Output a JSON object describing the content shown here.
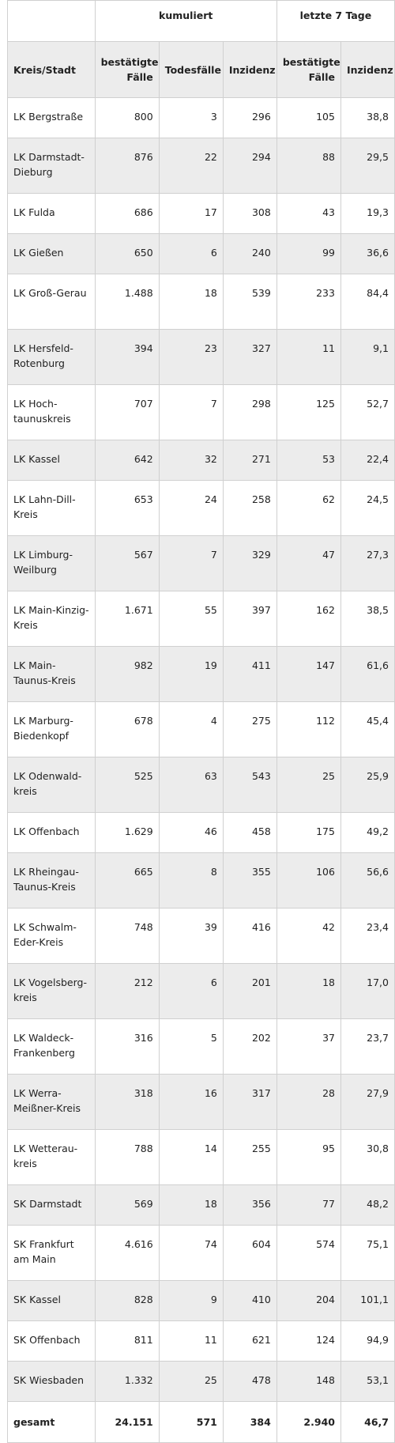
{
  "header": {
    "group_cumulative": "kumuliert",
    "group_7days": "letzte 7 Tage",
    "col_name": "Kreis/Stadt",
    "col_cases": "bestätigte Fälle",
    "col_deaths": "Todesfälle",
    "col_incidence": "Inzidenz",
    "col_cases7": "bestätigte Fälle",
    "col_incidence7": "Inzidenz"
  },
  "rows": [
    {
      "name": "LK Bergstraße",
      "cases": "800",
      "deaths": "3",
      "incidence": "296",
      "cases7": "105",
      "incidence7": "38,8"
    },
    {
      "name": "LK Darmstadt-Dieburg",
      "cases": "876",
      "deaths": "22",
      "incidence": "294",
      "cases7": "88",
      "incidence7": "29,5"
    },
    {
      "name": "LK Fulda",
      "cases": "686",
      "deaths": "17",
      "incidence": "308",
      "cases7": "43",
      "incidence7": "19,3"
    },
    {
      "name": "LK Gießen",
      "cases": "650",
      "deaths": "6",
      "incidence": "240",
      "cases7": "99",
      "incidence7": "36,6"
    },
    {
      "name": "LK Groß-Gerau",
      "cases": "1.488",
      "deaths": "18",
      "incidence": "539",
      "cases7": "233",
      "incidence7": "84,4"
    },
    {
      "name": "LK Hersfeld-Rotenburg",
      "cases": "394",
      "deaths": "23",
      "incidence": "327",
      "cases7": "11",
      "incidence7": "9,1"
    },
    {
      "name": "LK Hoch-taunuskreis",
      "cases": "707",
      "deaths": "7",
      "incidence": "298",
      "cases7": "125",
      "incidence7": "52,7"
    },
    {
      "name": "LK Kassel",
      "cases": "642",
      "deaths": "32",
      "incidence": "271",
      "cases7": "53",
      "incidence7": "22,4"
    },
    {
      "name": "LK Lahn-Dill-Kreis",
      "cases": "653",
      "deaths": "24",
      "incidence": "258",
      "cases7": "62",
      "incidence7": "24,5"
    },
    {
      "name": "LK Limburg-Weilburg",
      "cases": "567",
      "deaths": "7",
      "incidence": "329",
      "cases7": "47",
      "incidence7": "27,3"
    },
    {
      "name": "LK Main-Kinzig-Kreis",
      "cases": "1.671",
      "deaths": "55",
      "incidence": "397",
      "cases7": "162",
      "incidence7": "38,5"
    },
    {
      "name": "LK Main-Taunus-Kreis",
      "cases": "982",
      "deaths": "19",
      "incidence": "411",
      "cases7": "147",
      "incidence7": "61,6"
    },
    {
      "name": "LK Marburg-Biedenkopf",
      "cases": "678",
      "deaths": "4",
      "incidence": "275",
      "cases7": "112",
      "incidence7": "45,4"
    },
    {
      "name": "LK Odenwald-kreis",
      "cases": "525",
      "deaths": "63",
      "incidence": "543",
      "cases7": "25",
      "incidence7": "25,9"
    },
    {
      "name": "LK Offenbach",
      "cases": "1.629",
      "deaths": "46",
      "incidence": "458",
      "cases7": "175",
      "incidence7": "49,2"
    },
    {
      "name": "LK Rheingau-Taunus-Kreis",
      "cases": "665",
      "deaths": "8",
      "incidence": "355",
      "cases7": "106",
      "incidence7": "56,6"
    },
    {
      "name": "LK Schwalm-Eder-Kreis",
      "cases": "748",
      "deaths": "39",
      "incidence": "416",
      "cases7": "42",
      "incidence7": "23,4"
    },
    {
      "name": "LK Vogelsberg-kreis",
      "cases": "212",
      "deaths": "6",
      "incidence": "201",
      "cases7": "18",
      "incidence7": "17,0"
    },
    {
      "name": "LK Waldeck-Frankenberg",
      "cases": "316",
      "deaths": "5",
      "incidence": "202",
      "cases7": "37",
      "incidence7": "23,7"
    },
    {
      "name": "LK Werra-Meißner-Kreis",
      "cases": "318",
      "deaths": "16",
      "incidence": "317",
      "cases7": "28",
      "incidence7": "27,9"
    },
    {
      "name": "LK Wetterau-kreis",
      "cases": "788",
      "deaths": "14",
      "incidence": "255",
      "cases7": "95",
      "incidence7": "30,8"
    },
    {
      "name": "SK Darmstadt",
      "cases": "569",
      "deaths": "18",
      "incidence": "356",
      "cases7": "77",
      "incidence7": "48,2"
    },
    {
      "name": "SK Frankfurt am Main",
      "cases": "4.616",
      "deaths": "74",
      "incidence": "604",
      "cases7": "574",
      "incidence7": "75,1"
    },
    {
      "name": "SK Kassel",
      "cases": "828",
      "deaths": "9",
      "incidence": "410",
      "cases7": "204",
      "incidence7": "101,1"
    },
    {
      "name": "SK Offenbach",
      "cases": "811",
      "deaths": "11",
      "incidence": "621",
      "cases7": "124",
      "incidence7": "94,9"
    },
    {
      "name": "SK Wiesbaden",
      "cases": "1.332",
      "deaths": "25",
      "incidence": "478",
      "cases7": "148",
      "incidence7": "53,1"
    }
  ],
  "total": {
    "name": "gesamt",
    "cases": "24.151",
    "deaths": "571",
    "incidence": "384",
    "cases7": "2.940",
    "incidence7": "46,7"
  }
}
